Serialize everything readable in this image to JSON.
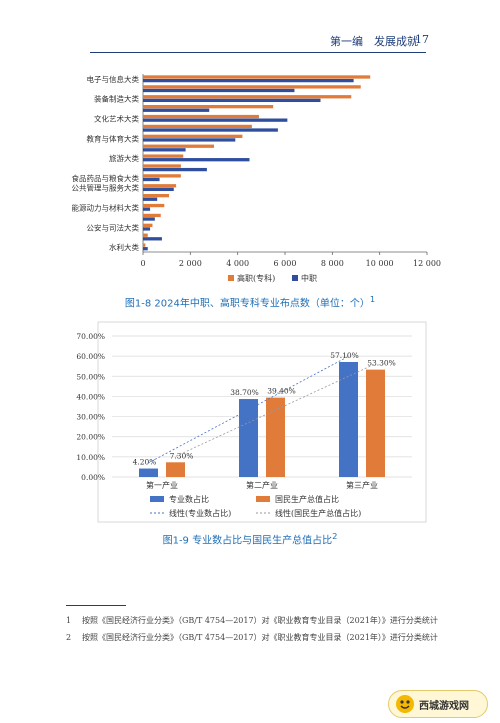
{
  "header": {
    "chapter": "第一编　发展成就",
    "page_number": "17"
  },
  "figure_8": {
    "caption": "图1-8 2024年中职、高职专科专业布点数（单位：个）",
    "caption_sup": "1",
    "chart_data": {
      "type": "bar",
      "orientation": "horizontal",
      "categories": [
        "电子与信息大类",
        "",
        "装备制造大类",
        "",
        "文化艺术大类",
        "",
        "教育与体育大类",
        "",
        "旅游大类",
        "",
        "食品药品与粮食大类",
        "公共管理与服务大类",
        "",
        "能源动力与材料大类",
        "",
        "公安与司法大类",
        "",
        "水利大类"
      ],
      "series": [
        {
          "name": "高职(专科)",
          "color": "#e07b39",
          "values": [
            9600,
            9200,
            8800,
            5500,
            4900,
            4600,
            4200,
            3000,
            1700,
            1600,
            1600,
            1400,
            1100,
            900,
            750,
            400,
            200,
            100
          ]
        },
        {
          "name": "中职",
          "color": "#2f4f9e",
          "values": [
            8900,
            6400,
            7500,
            2800,
            6100,
            5700,
            3900,
            1800,
            4500,
            2700,
            700,
            1300,
            600,
            300,
            500,
            300,
            800,
            200
          ]
        }
      ],
      "xlim": [
        0,
        12000
      ],
      "xticks": [
        "0",
        "2 000",
        "4 000",
        "6 000",
        "8 000",
        "10 000",
        "12 000"
      ],
      "legend_position": "bottom"
    }
  },
  "figure_9": {
    "caption": "图1-9 专业数占比与国民生产总值占比",
    "caption_sup": "2",
    "chart_data": {
      "type": "bar",
      "categories": [
        "第一产业",
        "第二产业",
        "第三产业"
      ],
      "series": [
        {
          "name": "专业数占比",
          "color": "#4472c4",
          "values": [
            4.2,
            38.7,
            57.1
          ],
          "labels": [
            "4.20%",
            "38.70%",
            "57.10%"
          ]
        },
        {
          "name": "国民生产总值占比",
          "color": "#e07b39",
          "values": [
            7.3,
            39.4,
            53.3
          ],
          "labels": [
            "7.30%",
            "39.40%",
            "53.30%"
          ]
        }
      ],
      "trendlines": [
        {
          "name": "线性(专业数占比)",
          "color": "#4472c4"
        },
        {
          "name": "线性(国民生产总值占比)",
          "color": "#999999"
        }
      ],
      "ylim": [
        0,
        70
      ],
      "yticks": [
        "0.00%",
        "10.00%",
        "20.00%",
        "30.00%",
        "40.00%",
        "50.00%",
        "60.00%",
        "70.00%"
      ],
      "grid": true,
      "legend_position": "bottom"
    }
  },
  "footnotes": [
    {
      "num": "1",
      "text": "按照《国民经济行业分类》（GB/T 4754—2017）对《职业教育专业目录（2021年）》进行分类统计"
    },
    {
      "num": "2",
      "text": "按照《国民经济行业分类》（GB/T 4754—2017）对《职业教育专业目录（2021年）》进行分类统计"
    }
  ],
  "watermark": {
    "text": "西城游戏网"
  }
}
